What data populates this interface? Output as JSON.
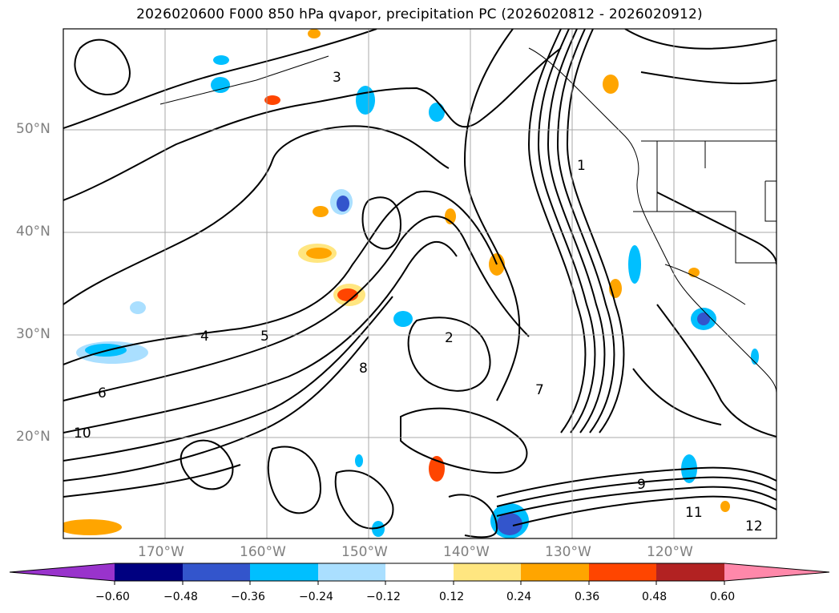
{
  "title": "2026020600 F000 850 hPa qvapor, precipitation PC (2026020812 - 2026020912)",
  "map": {
    "lat_labels": [
      "50°N",
      "40°N",
      "30°N",
      "20°N"
    ],
    "lon_labels": [
      "170°W",
      "160°W",
      "150°W",
      "140°W",
      "130°W",
      "120°W"
    ],
    "contour_labels": [
      "1",
      "2",
      "3",
      "4",
      "5",
      "6",
      "7",
      "8",
      "9",
      "10",
      "11",
      "12"
    ],
    "grid": true,
    "extent": {
      "lon_min": -180,
      "lon_max": -110,
      "lat_min": 10,
      "lat_max": 60
    }
  },
  "colorbar": {
    "ticks": [
      "−0.60",
      "−0.48",
      "−0.36",
      "−0.24",
      "−0.12",
      "0.12",
      "0.24",
      "0.36",
      "0.48",
      "0.60"
    ],
    "colors": [
      "#9933cc",
      "#000080",
      "#3355cc",
      "#00bfff",
      "#aadfff",
      "#ffffff",
      "#ffe680",
      "#ffa500",
      "#ff4500",
      "#b22222",
      "#ff88aa"
    ],
    "extend": "both"
  }
}
